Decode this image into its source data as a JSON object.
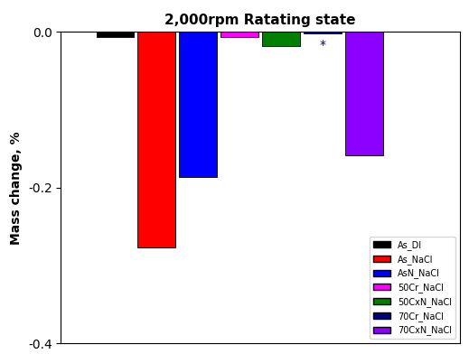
{
  "chart_data": {
    "type": "bar",
    "title": "2,000rpm Ratating state",
    "y_label": "Mass change, %",
    "categories": [
      "As_DI",
      "As_NaCl",
      "AsN_NaCl",
      "50Cr_NaCl",
      "50CxN_NaCl",
      "70Cr_NaCl",
      "70CxN_NaCl"
    ],
    "values": [
      -0.007,
      -0.277,
      -0.186,
      -0.007,
      -0.018,
      -0.002,
      -0.158
    ],
    "colors": [
      "#000000",
      "#ff0000",
      "#0000ff",
      "#ff00ff",
      "#008000",
      "#000080",
      "#8b00ff"
    ],
    "ylim": [
      -0.4,
      0
    ],
    "yticks": [
      -0.4,
      -0.2,
      {
        "value": 0,
        "label": "0.0"
      }
    ],
    "tick_labels": "y",
    "legend": "lower right",
    "annotations": [
      {
        "text": "*",
        "category": "70Cr_NaCl"
      }
    ]
  }
}
